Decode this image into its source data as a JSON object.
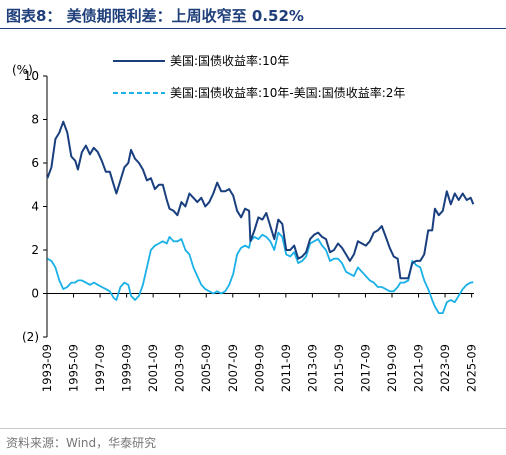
{
  "header": {
    "title": "图表8：  美债期限利差：上周收窄至 0.52%"
  },
  "footer": {
    "source": "资料来源：Wind，华泰研究"
  },
  "colors": {
    "series_10y": "#1a3f7f",
    "series_spread": "#1ab0e8",
    "title": "#1f3f7a"
  },
  "chart_data": {
    "type": "line",
    "title": "美债期限利差：上周收窄至 0.52%",
    "ylabel": "(%)",
    "ylim": [
      -2,
      10
    ],
    "yticks": [
      -2,
      0,
      2,
      4,
      6,
      8,
      10
    ],
    "ytick_labels": [
      "(2)",
      "0",
      "2",
      "4",
      "6",
      "8",
      "10"
    ],
    "xlim": [
      1993.67,
      2025.85
    ],
    "xtick_labels": [
      "1993-09",
      "1995-09",
      "1997-09",
      "1999-09",
      "2001-09",
      "2003-09",
      "2005-09",
      "2007-09",
      "2009-09",
      "2011-09",
      "2013-09",
      "2015-09",
      "2017-09",
      "2019-09",
      "2021-09",
      "2023-09",
      "2025-09"
    ],
    "legend_position": "top-right",
    "series": [
      {
        "name": "美国:国债收益率:10年",
        "style": "solid",
        "x": [
          1993.7,
          1994.0,
          1994.3,
          1994.6,
          1994.9,
          1995.2,
          1995.5,
          1995.8,
          1996.0,
          1996.3,
          1996.6,
          1996.9,
          1997.2,
          1997.5,
          1997.8,
          1998.1,
          1998.4,
          1998.7,
          1998.9,
          1999.2,
          1999.5,
          1999.8,
          2000.0,
          2000.3,
          2000.6,
          2000.9,
          2001.2,
          2001.5,
          2001.8,
          2002.1,
          2002.4,
          2002.7,
          2002.9,
          2003.2,
          2003.5,
          2003.8,
          2004.1,
          2004.4,
          2004.7,
          2005.0,
          2005.3,
          2005.6,
          2005.9,
          2006.2,
          2006.5,
          2006.8,
          2007.1,
          2007.4,
          2007.7,
          2008.0,
          2008.3,
          2008.6,
          2008.9,
          2009.0,
          2009.3,
          2009.6,
          2009.9,
          2010.2,
          2010.5,
          2010.8,
          2011.1,
          2011.4,
          2011.7,
          2012.0,
          2012.3,
          2012.6,
          2012.9,
          2013.2,
          2013.5,
          2013.8,
          2014.1,
          2014.4,
          2014.7,
          2015.0,
          2015.3,
          2015.6,
          2015.9,
          2016.2,
          2016.5,
          2016.8,
          2017.1,
          2017.4,
          2017.7,
          2018.0,
          2018.3,
          2018.6,
          2018.9,
          2019.2,
          2019.5,
          2019.8,
          2020.1,
          2020.3,
          2020.6,
          2020.9,
          2021.2,
          2021.5,
          2021.8,
          2022.1,
          2022.4,
          2022.7,
          2022.9,
          2023.2,
          2023.5,
          2023.8,
          2024.1,
          2024.4,
          2024.7,
          2025.0,
          2025.3,
          2025.6,
          2025.8
        ],
        "values": [
          5.3,
          5.8,
          7.1,
          7.4,
          7.9,
          7.4,
          6.3,
          6.1,
          5.7,
          6.5,
          6.8,
          6.4,
          6.7,
          6.5,
          6.1,
          5.6,
          5.6,
          5.0,
          4.6,
          5.2,
          5.8,
          6.0,
          6.6,
          6.2,
          6.0,
          5.7,
          5.2,
          5.3,
          4.8,
          5.0,
          5.0,
          4.3,
          3.9,
          3.8,
          3.6,
          4.2,
          4.0,
          4.6,
          4.4,
          4.2,
          4.4,
          4.0,
          4.2,
          4.6,
          5.1,
          4.7,
          4.7,
          4.8,
          4.5,
          3.8,
          3.5,
          3.9,
          3.8,
          2.4,
          2.9,
          3.5,
          3.4,
          3.7,
          3.1,
          2.5,
          3.4,
          3.2,
          2.0,
          2.0,
          2.2,
          1.6,
          1.7,
          1.9,
          2.5,
          2.7,
          2.8,
          2.6,
          2.5,
          1.9,
          2.0,
          2.3,
          2.1,
          1.8,
          1.5,
          1.8,
          2.4,
          2.3,
          2.2,
          2.4,
          2.8,
          2.9,
          3.1,
          2.6,
          2.1,
          1.7,
          1.6,
          0.7,
          0.7,
          0.7,
          1.4,
          1.5,
          1.5,
          1.8,
          2.9,
          2.9,
          3.9,
          3.6,
          3.8,
          4.7,
          4.1,
          4.6,
          4.3,
          4.6,
          4.3,
          4.4,
          4.1
        ]
      },
      {
        "name": "美国:国债收益率:10年-美国:国债收益率:2年",
        "style": "dashed",
        "x": [
          1993.7,
          1994.0,
          1994.3,
          1994.6,
          1994.9,
          1995.2,
          1995.5,
          1995.8,
          1996.0,
          1996.3,
          1996.6,
          1996.9,
          1997.2,
          1997.5,
          1997.8,
          1998.1,
          1998.4,
          1998.7,
          1998.9,
          1999.2,
          1999.5,
          1999.8,
          2000.0,
          2000.3,
          2000.6,
          2000.9,
          2001.2,
          2001.5,
          2001.8,
          2002.1,
          2002.4,
          2002.7,
          2002.9,
          2003.2,
          2003.5,
          2003.8,
          2004.1,
          2004.4,
          2004.7,
          2005.0,
          2005.3,
          2005.6,
          2005.9,
          2006.2,
          2006.5,
          2006.8,
          2007.1,
          2007.4,
          2007.7,
          2008.0,
          2008.3,
          2008.6,
          2008.9,
          2009.0,
          2009.3,
          2009.6,
          2009.9,
          2010.2,
          2010.5,
          2010.8,
          2011.1,
          2011.4,
          2011.7,
          2012.0,
          2012.3,
          2012.6,
          2012.9,
          2013.2,
          2013.5,
          2013.8,
          2014.1,
          2014.4,
          2014.7,
          2015.0,
          2015.3,
          2015.6,
          2015.9,
          2016.2,
          2016.5,
          2016.8,
          2017.1,
          2017.4,
          2017.7,
          2018.0,
          2018.3,
          2018.6,
          2018.9,
          2019.2,
          2019.5,
          2019.8,
          2020.1,
          2020.3,
          2020.6,
          2020.9,
          2021.2,
          2021.5,
          2021.8,
          2022.1,
          2022.4,
          2022.7,
          2022.9,
          2023.2,
          2023.5,
          2023.8,
          2024.1,
          2024.4,
          2024.7,
          2025.0,
          2025.3,
          2025.6,
          2025.8
        ],
        "values": [
          1.6,
          1.5,
          1.2,
          0.6,
          0.2,
          0.3,
          0.5,
          0.5,
          0.6,
          0.6,
          0.5,
          0.4,
          0.5,
          0.4,
          0.3,
          0.2,
          0.1,
          -0.2,
          -0.3,
          0.3,
          0.5,
          0.4,
          -0.1,
          -0.3,
          -0.1,
          0.4,
          1.2,
          2.0,
          2.2,
          2.3,
          2.4,
          2.3,
          2.6,
          2.4,
          2.4,
          2.5,
          2.0,
          1.8,
          1.2,
          0.8,
          0.4,
          0.2,
          0.1,
          0.0,
          0.1,
          0.0,
          0.1,
          0.4,
          0.9,
          1.8,
          2.1,
          2.2,
          2.1,
          2.4,
          2.6,
          2.5,
          2.7,
          2.6,
          2.4,
          2.0,
          2.8,
          2.6,
          1.8,
          1.7,
          1.9,
          1.4,
          1.5,
          1.7,
          2.3,
          2.4,
          2.5,
          2.2,
          2.0,
          1.5,
          1.6,
          1.6,
          1.4,
          1.0,
          0.9,
          0.8,
          1.2,
          1.0,
          0.8,
          0.6,
          0.5,
          0.3,
          0.3,
          0.2,
          0.1,
          0.1,
          0.3,
          0.5,
          0.5,
          0.6,
          1.5,
          1.3,
          1.2,
          0.6,
          0.2,
          -0.3,
          -0.6,
          -0.9,
          -0.9,
          -0.4,
          -0.3,
          -0.4,
          -0.1,
          0.2,
          0.4,
          0.5,
          0.52
        ]
      }
    ]
  }
}
